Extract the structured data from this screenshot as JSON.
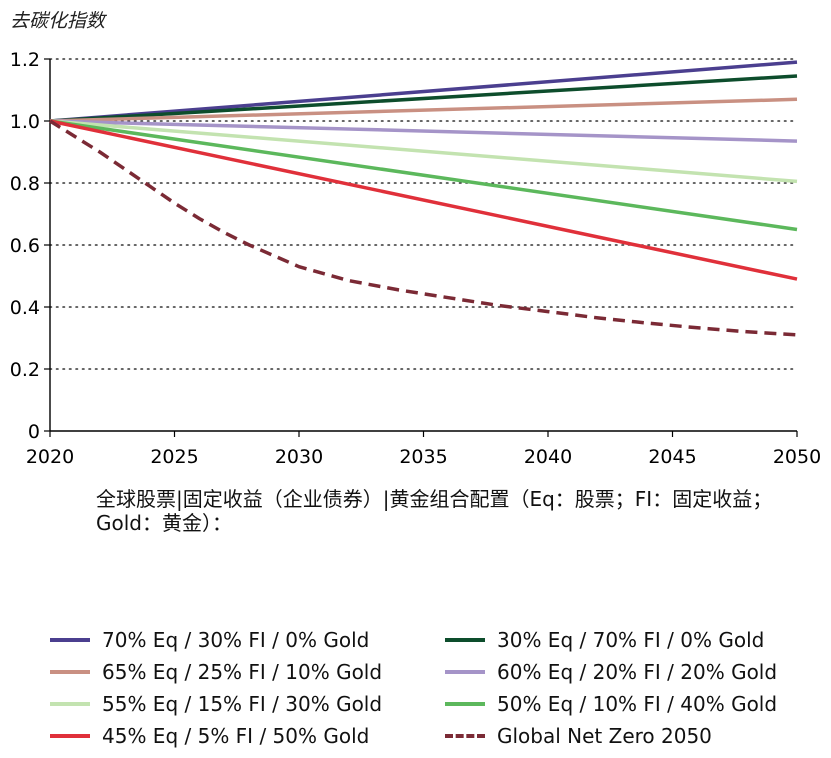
{
  "chart_data": {
    "type": "line",
    "title": "",
    "ylabel": "去碳化指数",
    "xlabel": "全球股票|固定收益（企业债券）|黄金组合配置（Eq：股票；FI：固定收益；Gold：黄金）：",
    "xlim": [
      2020,
      2050
    ],
    "ylim": [
      0,
      1.2
    ],
    "x_ticks": [
      "2020",
      "2025",
      "2030",
      "2035",
      "2040",
      "2045",
      "2050"
    ],
    "y_ticks": [
      "0",
      "0.2",
      "0.4",
      "0.6",
      "0.8",
      "1.0",
      "1.2"
    ],
    "grid": "horizontal-dotted",
    "legend_position": "bottom",
    "series": [
      {
        "name": "70% Eq / 30% FI / 0% Gold",
        "color": "#4b3f8f",
        "style": "solid",
        "x": [
          2020,
          2050
        ],
        "y": [
          1.0,
          1.19
        ]
      },
      {
        "name": "30% Eq / 70% FI / 0% Gold",
        "color": "#0d4d2c",
        "style": "solid",
        "x": [
          2020,
          2050
        ],
        "y": [
          1.0,
          1.145
        ]
      },
      {
        "name": "65% Eq / 25% FI / 10% Gold",
        "color": "#c99082",
        "style": "solid",
        "x": [
          2020,
          2050
        ],
        "y": [
          1.0,
          1.07
        ]
      },
      {
        "name": "60% Eq / 20% FI / 20% Gold",
        "color": "#a594c8",
        "style": "solid",
        "x": [
          2020,
          2050
        ],
        "y": [
          1.0,
          0.935
        ]
      },
      {
        "name": "55% Eq / 15% FI / 30% Gold",
        "color": "#c3e3b0",
        "style": "solid",
        "x": [
          2020,
          2050
        ],
        "y": [
          1.0,
          0.805
        ]
      },
      {
        "name": "50% Eq / 10% FI / 40% Gold",
        "color": "#5cb85c",
        "style": "solid",
        "x": [
          2020,
          2050
        ],
        "y": [
          1.0,
          0.65
        ]
      },
      {
        "name": "45% Eq / 5% FI / 50% Gold",
        "color": "#e0303a",
        "style": "solid",
        "x": [
          2020,
          2050
        ],
        "y": [
          1.0,
          0.49
        ]
      },
      {
        "name": "Global Net Zero 2050",
        "color": "#7b2a35",
        "style": "dashed",
        "x": [
          2020,
          2021,
          2022,
          2023,
          2024,
          2025,
          2026,
          2027,
          2028,
          2029,
          2030,
          2032,
          2034,
          2036,
          2038,
          2040,
          2042,
          2044,
          2046,
          2048,
          2050
        ],
        "y": [
          1.0,
          0.95,
          0.9,
          0.845,
          0.79,
          0.735,
          0.685,
          0.64,
          0.6,
          0.565,
          0.53,
          0.485,
          0.455,
          0.43,
          0.405,
          0.385,
          0.365,
          0.348,
          0.333,
          0.32,
          0.31
        ]
      }
    ]
  }
}
